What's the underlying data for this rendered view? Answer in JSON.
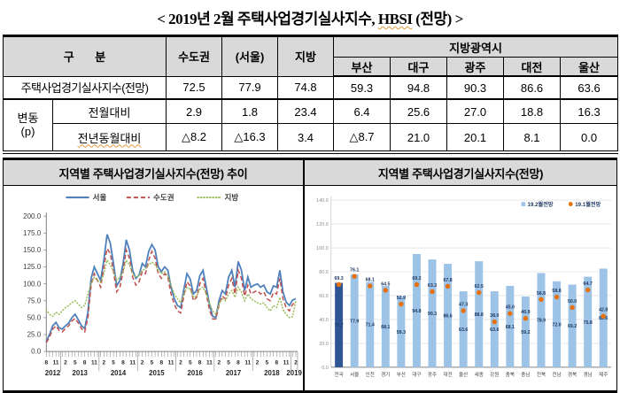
{
  "title": {
    "prefix": "< 2019년 2월 주택사업경기실사지수, ",
    "hbsi": "HBSI",
    "suffix": " (전망) >"
  },
  "table": {
    "header": {
      "col_group_label": "구 분",
      "col_labels": [
        "수도권",
        "(서울)",
        "지방"
      ],
      "metro_group_label": "지방광역시",
      "metro_labels": [
        "부산",
        "대구",
        "광주",
        "대전",
        "울산"
      ]
    },
    "group_label_line1": "변동",
    "group_label_line2": "(p)",
    "rows": [
      {
        "label": "주택사업경기실사지수(전망)",
        "values": [
          "72.5",
          "77.9",
          "74.8",
          "59.3",
          "94.8",
          "90.3",
          "86.6",
          "63.6"
        ]
      },
      {
        "label": "전월대비",
        "values": [
          "2.9",
          "1.8",
          "23.4",
          "6.4",
          "25.6",
          "27.0",
          "18.8",
          "16.3"
        ]
      },
      {
        "label": "전년동월대비",
        "values": [
          "△8.2",
          "△16.3",
          "3.4",
          "△8.7",
          "21.0",
          "20.1",
          "8.1",
          "0.0"
        ]
      }
    ]
  },
  "panels": {
    "left_title": "지역별 주택사업경기실사지수(전망) 추이",
    "right_title": "지역별 주택사업경기실사지수(전망)"
  },
  "chart_data": [
    {
      "type": "line",
      "title": "지역별 주택사업경기실사지수(전망) 추이",
      "ylim": [
        0,
        200
      ],
      "ytick_step": 25,
      "grid": false,
      "legend_position": "top",
      "colors": [
        "#4F81BD",
        "#C0504D",
        "#9BBB59"
      ],
      "line_styles": [
        "solid",
        "dashed",
        "dotted"
      ],
      "month_tick_every": 3,
      "month_tick_labels": [
        "8",
        "11",
        "2",
        "5",
        "8",
        "11",
        "2",
        "5",
        "8",
        "11",
        "2",
        "5",
        "8",
        "11",
        "2",
        "5",
        "8",
        "11",
        "2",
        "5",
        "8",
        "11",
        "2",
        "5",
        "8",
        "11",
        "2"
      ],
      "years": [
        {
          "label": "2012",
          "from": 0,
          "to": 4
        },
        {
          "label": "2013",
          "from": 5,
          "to": 16
        },
        {
          "label": "2014",
          "from": 17,
          "to": 28
        },
        {
          "label": "2015",
          "from": 29,
          "to": 40
        },
        {
          "label": "2016",
          "from": 41,
          "to": 52
        },
        {
          "label": "2017",
          "from": 53,
          "to": 64
        },
        {
          "label": "2018",
          "from": 65,
          "to": 76
        },
        {
          "label": "2019",
          "from": 77,
          "to": 78
        }
      ],
      "series": [
        {
          "name": "서울",
          "values": [
            15,
            25,
            38,
            43,
            35,
            33,
            38,
            42,
            50,
            55,
            47,
            38,
            34,
            58,
            108,
            125,
            115,
            105,
            135,
            173,
            160,
            130,
            97,
            105,
            130,
            165,
            150,
            120,
            108,
            113,
            130,
            125,
            148,
            158,
            150,
            125,
            118,
            125,
            120,
            95,
            78,
            68,
            65,
            92,
            115,
            107,
            85,
            90,
            112,
            120,
            95,
            70,
            52,
            50,
            75,
            90,
            85,
            110,
            120,
            95,
            133,
            120,
            90,
            110,
            95,
            98,
            100,
            95,
            98,
            88,
            85,
            97,
            95,
            120,
            88,
            73,
            68,
            76.1,
            77.9
          ]
        },
        {
          "name": "수도권",
          "values": [
            13,
            21,
            33,
            38,
            31,
            29,
            34,
            38,
            45,
            49,
            42,
            34,
            29,
            50,
            98,
            115,
            105,
            95,
            125,
            152,
            145,
            118,
            88,
            95,
            118,
            150,
            138,
            110,
            98,
            103,
            118,
            115,
            135,
            148,
            138,
            115,
            108,
            115,
            110,
            85,
            70,
            60,
            57,
            82,
            103,
            97,
            75,
            80,
            100,
            108,
            85,
            62,
            48,
            48,
            68,
            82,
            78,
            98,
            108,
            85,
            120,
            108,
            82,
            98,
            85,
            88,
            90,
            85,
            88,
            78,
            75,
            87,
            85,
            108,
            78,
            65,
            60,
            69.6,
            72.5
          ]
        },
        {
          "name": "지방",
          "values": [
            62,
            55,
            52,
            58,
            55,
            60,
            65,
            68,
            72,
            75,
            70,
            65,
            68,
            85,
            100,
            110,
            105,
            102,
            115,
            135,
            128,
            118,
            105,
            110,
            118,
            135,
            128,
            115,
            110,
            112,
            120,
            122,
            128,
            132,
            128,
            120,
            115,
            118,
            112,
            98,
            85,
            78,
            72,
            85,
            95,
            92,
            80,
            82,
            92,
            95,
            85,
            72,
            60,
            55,
            70,
            78,
            75,
            85,
            90,
            80,
            95,
            88,
            75,
            85,
            78,
            75,
            72,
            70,
            72,
            65,
            60,
            68,
            65,
            80,
            62,
            55,
            50,
            51.4,
            74.8
          ]
        }
      ]
    },
    {
      "type": "bar",
      "title": "지역별 주택사업경기실사지수(전망)",
      "ylim": [
        0,
        140
      ],
      "ytick_step": 20,
      "grid": true,
      "legend_position": "top-right",
      "bar_color": "#9DC3E6",
      "bar_color_first": "#2F5597",
      "dot_color": "#E8700A",
      "label_color": "#1F3864",
      "categories": [
        "전국",
        "서울",
        "인천",
        "경기",
        "부산",
        "대구",
        "광주",
        "대전",
        "울산",
        "세종",
        "강원",
        "충북",
        "충남",
        "전북",
        "전남",
        "경북",
        "경남",
        "제주"
      ],
      "series": [
        {
          "name": "19.2월전망",
          "values": [
            70.7,
            77.9,
            71.4,
            68.1,
            59.3,
            94.8,
            90.3,
            86.6,
            63.6,
            88.8,
            63.6,
            68.1,
            59.2,
            78.9,
            72.0,
            69.2,
            75.8,
            82.6
          ]
        },
        {
          "name": "19.1월전망",
          "values": [
            69.3,
            76.1,
            68.1,
            64.5,
            52.9,
            69.2,
            63.3,
            67.8,
            47.3,
            62.5,
            38.0,
            45.0,
            40.9,
            56.8,
            58.8,
            50.0,
            64.7,
            42.8
          ]
        }
      ]
    }
  ]
}
